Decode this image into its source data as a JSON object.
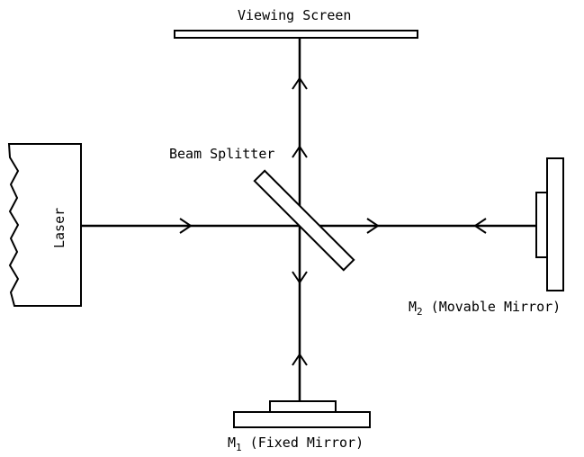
{
  "labels": {
    "viewing_screen": "Viewing Screen",
    "beam_splitter": "Beam Splitter",
    "laser": "Laser",
    "m2_main": "M",
    "m2_sub": "2",
    "m2_text": " (Movable Mirror)",
    "m1_main": "M",
    "m1_sub": "1",
    "m1_text": " (Fixed Mirror)"
  }
}
